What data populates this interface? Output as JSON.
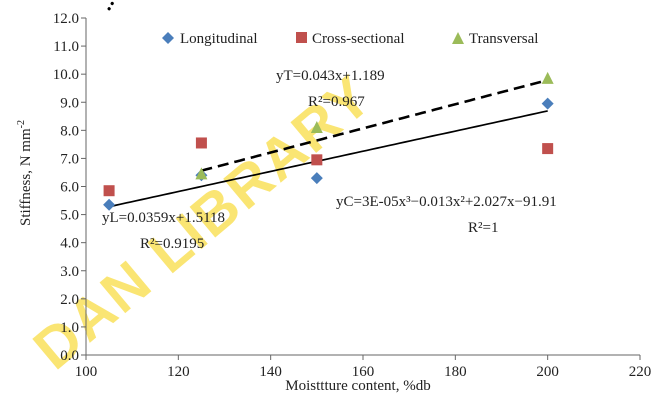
{
  "chart_data": {
    "type": "scatter",
    "xlabel": "Moisttture content, %db",
    "ylabel": "Stiffness, N mm",
    "ylabel_sup": "-2",
    "xlim": [
      100,
      220
    ],
    "ylim": [
      0,
      12
    ],
    "x_ticks": [
      "100",
      "120",
      "140",
      "160",
      "180",
      "200",
      "220"
    ],
    "y_ticks": [
      "0.0",
      "1.0",
      "2.0",
      "3.0",
      "4.0",
      "5.0",
      "6.0",
      "7.0",
      "8.0",
      "9.0",
      "10.0",
      "11.0",
      "12.0"
    ],
    "legend_position": "top",
    "series": [
      {
        "name": "Longitudinal",
        "marker": "diamond",
        "color": "#4a7ebb",
        "x": [
          105,
          125,
          150,
          200
        ],
        "y": [
          5.35,
          6.4,
          6.3,
          8.95
        ],
        "trendline": {
          "kind": "linear",
          "style": "solid",
          "color": "#000000",
          "a": 0.0359,
          "b": 1.5118,
          "from": 105,
          "to": 200
        }
      },
      {
        "name": "Cross-sectional",
        "marker": "square",
        "color": "#c0504d",
        "x": [
          105,
          125,
          150,
          200
        ],
        "y": [
          5.85,
          7.55,
          6.95,
          7.35
        ],
        "trendline": {
          "kind": "cubic",
          "style": "dotted",
          "color": "#000000",
          "coef": [
            3e-05,
            -0.013,
            2.027,
            -91.91
          ],
          "from": 105,
          "to": 200
        }
      },
      {
        "name": "Transversal",
        "marker": "triangle",
        "color": "#9bbb59",
        "x": [
          125,
          150,
          200
        ],
        "y": [
          6.45,
          8.1,
          9.85
        ],
        "trendline": {
          "kind": "linear",
          "style": "dashed",
          "color": "#000000",
          "a": 0.043,
          "b": 1.189,
          "from": 125,
          "to": 200
        }
      }
    ],
    "annotations": [
      {
        "id": "yT-eq",
        "text": "yT=0.043x+1.189"
      },
      {
        "id": "yT-r2",
        "text": "R²=0.967"
      },
      {
        "id": "yL-eq",
        "text": "yL=0.0359x+1.5118"
      },
      {
        "id": "yL-r2",
        "text": "R²=0.9195"
      },
      {
        "id": "yC-eq",
        "text": "yC=3E-05x³−0.013x²+2.027x−91.91"
      },
      {
        "id": "yC-r2",
        "text": "R²=1"
      }
    ],
    "watermark": "DAN LIBRARY"
  }
}
